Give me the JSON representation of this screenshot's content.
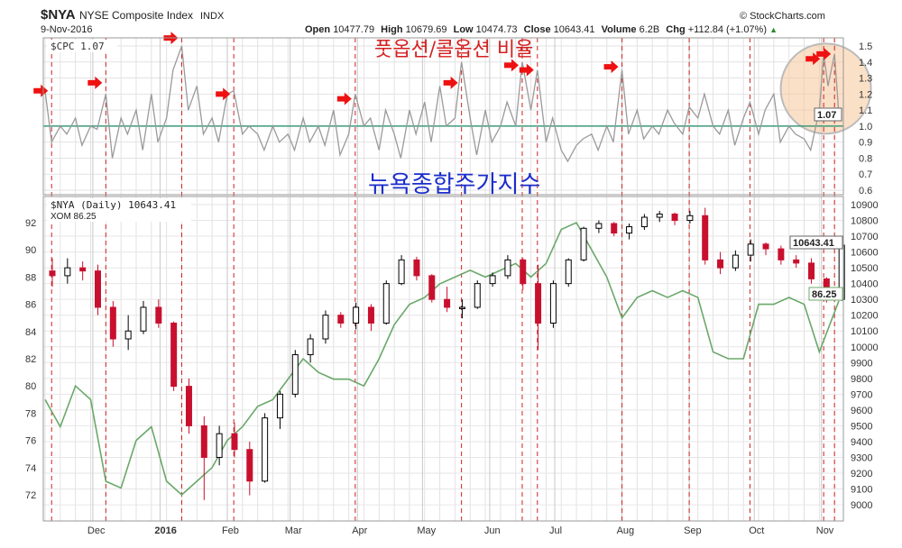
{
  "header": {
    "symbol": "$NYA",
    "name": "NYSE Composite Index",
    "exchange": "INDX",
    "date": "9-Nov-2016",
    "open_label": "Open",
    "open": "10477.79",
    "high_label": "High",
    "high": "10679.69",
    "low_label": "Low",
    "low": "10474.73",
    "close_label": "Close",
    "close": "10643.41",
    "volume_label": "Volume",
    "volume": "6.2B",
    "chg_label": "Chg",
    "chg": "+112.84 (+1.07%)",
    "chg_arrow": "▲",
    "copyright": "© StockCharts.com"
  },
  "annotations": {
    "top_title": "풋옵션/콜옵션 비율",
    "main_title": "뉴욕종합주가지수"
  },
  "colors": {
    "up_candle": "#000000",
    "down_candle": "#c8102e",
    "cpc_line": "#9a9a9a",
    "xom_line": "#6aa86a",
    "baseline": "#3f9a7a",
    "marker_line": "#d02020",
    "arrow": "#ee1111",
    "highlight": "#f7c79a",
    "korean_red": "#d42020",
    "korean_blue": "#1a2ccc"
  },
  "chart_data": [
    {
      "type": "line",
      "panel": "top",
      "legend": "$CPC 1.07",
      "last_value": "1.07",
      "ylim": [
        0.6,
        1.5
      ],
      "yticks": [
        "1.5",
        "1.4",
        "1.3",
        "1.2",
        "1.1",
        "1.0",
        "0.9",
        "0.8",
        "0.7",
        "0.6"
      ],
      "reference_line": 1.0,
      "grid": true,
      "points": [
        [
          "2015-11-09",
          1.22
        ],
        [
          "2015-11-12",
          0.9
        ],
        [
          "2015-11-16",
          1.0
        ],
        [
          "2015-11-19",
          0.95
        ],
        [
          "2015-11-23",
          1.05
        ],
        [
          "2015-11-26",
          0.88
        ],
        [
          "2015-11-30",
          1.0
        ],
        [
          "2015-12-03",
          0.98
        ],
        [
          "2015-12-07",
          1.2
        ],
        [
          "2015-12-10",
          0.8
        ],
        [
          "2015-12-14",
          1.05
        ],
        [
          "2015-12-17",
          0.95
        ],
        [
          "2015-12-21",
          1.1
        ],
        [
          "2015-12-24",
          0.85
        ],
        [
          "2015-12-28",
          1.2
        ],
        [
          "2015-12-31",
          0.9
        ],
        [
          "2016-01-04",
          1.05
        ],
        [
          "2016-01-07",
          1.35
        ],
        [
          "2016-01-11",
          1.5
        ],
        [
          "2016-01-14",
          1.1
        ],
        [
          "2016-01-18",
          1.25
        ],
        [
          "2016-01-21",
          0.95
        ],
        [
          "2016-01-25",
          1.05
        ],
        [
          "2016-01-28",
          0.9
        ],
        [
          "2016-02-01",
          1.2
        ],
        [
          "2016-02-04",
          1.22
        ],
        [
          "2016-02-08",
          0.95
        ],
        [
          "2016-02-11",
          1.0
        ],
        [
          "2016-02-15",
          0.95
        ],
        [
          "2016-02-18",
          0.85
        ],
        [
          "2016-02-22",
          1.0
        ],
        [
          "2016-02-25",
          0.9
        ],
        [
          "2016-02-29",
          0.95
        ],
        [
          "2016-03-03",
          0.85
        ],
        [
          "2016-03-07",
          1.05
        ],
        [
          "2016-03-10",
          0.9
        ],
        [
          "2016-03-14",
          1.0
        ],
        [
          "2016-03-17",
          0.88
        ],
        [
          "2016-03-21",
          1.1
        ],
        [
          "2016-03-24",
          0.82
        ],
        [
          "2016-03-28",
          0.95
        ],
        [
          "2016-03-31",
          1.2
        ],
        [
          "2016-04-04",
          1.0
        ],
        [
          "2016-04-07",
          1.05
        ],
        [
          "2016-04-11",
          0.85
        ],
        [
          "2016-04-14",
          1.1
        ],
        [
          "2016-04-18",
          0.95
        ],
        [
          "2016-04-21",
          0.8
        ],
        [
          "2016-04-25",
          1.1
        ],
        [
          "2016-04-28",
          0.95
        ],
        [
          "2016-05-02",
          1.15
        ],
        [
          "2016-05-05",
          0.9
        ],
        [
          "2016-05-09",
          1.25
        ],
        [
          "2016-05-12",
          1.0
        ],
        [
          "2016-05-16",
          1.05
        ],
        [
          "2016-05-19",
          1.4
        ],
        [
          "2016-05-23",
          1.05
        ],
        [
          "2016-05-26",
          0.82
        ],
        [
          "2016-05-30",
          1.1
        ],
        [
          "2016-06-02",
          0.9
        ],
        [
          "2016-06-06",
          1.0
        ],
        [
          "2016-06-09",
          1.15
        ],
        [
          "2016-06-13",
          1.0
        ],
        [
          "2016-06-16",
          1.4
        ],
        [
          "2016-06-20",
          1.1
        ],
        [
          "2016-06-23",
          1.35
        ],
        [
          "2016-06-27",
          0.9
        ],
        [
          "2016-06-30",
          1.05
        ],
        [
          "2016-07-04",
          0.85
        ],
        [
          "2016-07-07",
          0.78
        ],
        [
          "2016-07-11",
          0.88
        ],
        [
          "2016-07-14",
          0.92
        ],
        [
          "2016-07-18",
          0.95
        ],
        [
          "2016-07-21",
          0.85
        ],
        [
          "2016-07-25",
          1.0
        ],
        [
          "2016-07-28",
          0.9
        ],
        [
          "2016-08-01",
          1.35
        ],
        [
          "2016-08-04",
          0.95
        ],
        [
          "2016-08-08",
          1.1
        ],
        [
          "2016-08-11",
          0.92
        ],
        [
          "2016-08-15",
          1.0
        ],
        [
          "2016-08-18",
          0.95
        ],
        [
          "2016-08-22",
          1.1
        ],
        [
          "2016-08-25",
          1.02
        ],
        [
          "2016-08-29",
          0.95
        ],
        [
          "2016-09-01",
          1.12
        ],
        [
          "2016-09-05",
          1.05
        ],
        [
          "2016-09-08",
          1.2
        ],
        [
          "2016-09-12",
          1.0
        ],
        [
          "2016-09-15",
          0.95
        ],
        [
          "2016-09-19",
          1.1
        ],
        [
          "2016-09-22",
          0.88
        ],
        [
          "2016-09-26",
          1.05
        ],
        [
          "2016-09-29",
          1.15
        ],
        [
          "2016-10-03",
          0.95
        ],
        [
          "2016-10-06",
          1.1
        ],
        [
          "2016-10-10",
          1.2
        ],
        [
          "2016-10-13",
          0.9
        ],
        [
          "2016-10-17",
          1.0
        ],
        [
          "2016-10-20",
          0.95
        ],
        [
          "2016-10-24",
          0.92
        ],
        [
          "2016-10-27",
          0.85
        ],
        [
          "2016-10-31",
          1.1
        ],
        [
          "2016-11-02",
          1.45
        ],
        [
          "2016-11-04",
          1.25
        ],
        [
          "2016-11-07",
          1.45
        ],
        [
          "2016-11-09",
          1.07
        ]
      ]
    },
    {
      "type": "candlestick",
      "panel": "main",
      "legend": "$NYA (Daily) 10643.41",
      "last_value": "10643.41",
      "axis": "right",
      "ylim": [
        8950,
        10950
      ],
      "yticks": [
        "10900",
        "10800",
        "10700",
        "10600",
        "10500",
        "10400",
        "10300",
        "10200",
        "10100",
        "10000",
        "9900",
        "9800",
        "9700",
        "9600",
        "9500",
        "9400",
        "9300",
        "9200",
        "9100",
        "9000"
      ],
      "grid": true,
      "ohlc": [
        [
          "2015-11-09",
          10480,
          10560,
          10380,
          10450
        ],
        [
          "2015-11-16",
          10450,
          10560,
          10400,
          10500
        ],
        [
          "2015-11-23",
          10500,
          10540,
          10420,
          10480
        ],
        [
          "2015-11-30",
          10480,
          10520,
          10200,
          10250
        ],
        [
          "2015-12-07",
          10250,
          10290,
          10000,
          10050
        ],
        [
          "2015-12-14",
          10050,
          10200,
          9980,
          10100
        ],
        [
          "2015-12-21",
          10100,
          10290,
          10080,
          10250
        ],
        [
          "2015-12-28",
          10250,
          10300,
          10120,
          10150
        ],
        [
          "2016-01-04",
          10150,
          10160,
          9720,
          9750
        ],
        [
          "2016-01-11",
          9750,
          9800,
          9450,
          9500
        ],
        [
          "2016-01-18",
          9500,
          9560,
          9030,
          9300
        ],
        [
          "2016-01-25",
          9300,
          9500,
          9250,
          9450
        ],
        [
          "2016-02-01",
          9450,
          9520,
          9300,
          9350
        ],
        [
          "2016-02-08",
          9350,
          9400,
          9060,
          9150
        ],
        [
          "2016-02-15",
          9150,
          9580,
          9140,
          9550
        ],
        [
          "2016-02-22",
          9550,
          9720,
          9480,
          9700
        ],
        [
          "2016-02-29",
          9700,
          9980,
          9680,
          9950
        ],
        [
          "2016-03-07",
          9950,
          10080,
          9900,
          10050
        ],
        [
          "2016-03-14",
          10050,
          10230,
          10020,
          10200
        ],
        [
          "2016-03-21",
          10200,
          10220,
          10120,
          10150
        ],
        [
          "2016-03-28",
          10150,
          10280,
          10110,
          10250
        ],
        [
          "2016-04-04",
          10250,
          10270,
          10100,
          10150
        ],
        [
          "2016-04-11",
          10150,
          10420,
          10140,
          10400
        ],
        [
          "2016-04-18",
          10400,
          10580,
          10390,
          10550
        ],
        [
          "2016-04-25",
          10550,
          10570,
          10420,
          10450
        ],
        [
          "2016-05-02",
          10450,
          10460,
          10280,
          10300
        ],
        [
          "2016-05-09",
          10300,
          10380,
          10220,
          10250
        ],
        [
          "2016-05-16",
          10250,
          10300,
          10180,
          10250
        ],
        [
          "2016-05-23",
          10250,
          10420,
          10240,
          10400
        ],
        [
          "2016-05-30",
          10400,
          10470,
          10380,
          10450
        ],
        [
          "2016-06-06",
          10450,
          10580,
          10430,
          10550
        ],
        [
          "2016-06-13",
          10550,
          10560,
          10360,
          10400
        ],
        [
          "2016-06-20",
          10400,
          10520,
          9980,
          10150
        ],
        [
          "2016-06-27",
          10150,
          10420,
          10120,
          10400
        ],
        [
          "2016-07-04",
          10400,
          10560,
          10380,
          10550
        ],
        [
          "2016-07-11",
          10550,
          10760,
          10540,
          10750
        ],
        [
          "2016-07-18",
          10750,
          10800,
          10720,
          10780
        ],
        [
          "2016-07-25",
          10780,
          10790,
          10700,
          10720
        ],
        [
          "2016-08-01",
          10720,
          10780,
          10680,
          10760
        ],
        [
          "2016-08-08",
          10760,
          10840,
          10740,
          10820
        ],
        [
          "2016-08-15",
          10820,
          10860,
          10790,
          10840
        ],
        [
          "2016-08-22",
          10840,
          10850,
          10770,
          10800
        ],
        [
          "2016-08-29",
          10800,
          10860,
          10780,
          10830
        ],
        [
          "2016-09-05",
          10830,
          10880,
          10520,
          10550
        ],
        [
          "2016-09-12",
          10550,
          10600,
          10460,
          10500
        ],
        [
          "2016-09-19",
          10500,
          10610,
          10480,
          10580
        ],
        [
          "2016-09-26",
          10580,
          10680,
          10540,
          10650
        ],
        [
          "2016-10-03",
          10650,
          10660,
          10580,
          10620
        ],
        [
          "2016-10-10",
          10620,
          10640,
          10520,
          10550
        ],
        [
          "2016-10-17",
          10550,
          10580,
          10500,
          10530
        ],
        [
          "2016-10-24",
          10530,
          10560,
          10400,
          10430
        ],
        [
          "2016-10-31",
          10430,
          10440,
          10280,
          10300
        ],
        [
          "2016-11-07",
          10300,
          10679.69,
          10290,
          10643.41
        ]
      ]
    },
    {
      "type": "line",
      "panel": "main",
      "legend": "XOM 86.25",
      "last_value": "86.25",
      "axis": "left",
      "ylim": [
        70.5,
        93.3
      ],
      "yticks": [
        "92",
        "90",
        "88",
        "86",
        "84",
        "82",
        "80",
        "78",
        "76",
        "74",
        "72"
      ],
      "dates": [
        "2015-11-09",
        "2015-11-16",
        "2015-11-23",
        "2015-11-30",
        "2015-12-07",
        "2015-12-14",
        "2015-12-21",
        "2015-12-28",
        "2016-01-04",
        "2016-01-11",
        "2016-01-18",
        "2016-01-25",
        "2016-02-01",
        "2016-02-08",
        "2016-02-15",
        "2016-02-22",
        "2016-02-29",
        "2016-03-07",
        "2016-03-14",
        "2016-03-21",
        "2016-03-28",
        "2016-04-04",
        "2016-04-11",
        "2016-04-18",
        "2016-04-25",
        "2016-05-02",
        "2016-05-09",
        "2016-05-16",
        "2016-05-23",
        "2016-05-30",
        "2016-06-06",
        "2016-06-13",
        "2016-06-20",
        "2016-06-27",
        "2016-07-04",
        "2016-07-11",
        "2016-07-18",
        "2016-07-25",
        "2016-08-01",
        "2016-08-08",
        "2016-08-15",
        "2016-08-22",
        "2016-08-29",
        "2016-09-05",
        "2016-09-12",
        "2016-09-19",
        "2016-09-26",
        "2016-10-03",
        "2016-10-10",
        "2016-10-17",
        "2016-10-24",
        "2016-10-31",
        "2016-11-09"
      ],
      "values": [
        79,
        77,
        80,
        79,
        73,
        72.5,
        76,
        77,
        73,
        72,
        73,
        74,
        76,
        77,
        78.5,
        79,
        80.5,
        82,
        81,
        80.5,
        80.5,
        80,
        82,
        84.5,
        86,
        86.5,
        87.5,
        88,
        88.5,
        88,
        88.5,
        89,
        88,
        89,
        91.5,
        92,
        90,
        88,
        85,
        86.5,
        87,
        86.5,
        87,
        86.5,
        82.5,
        82,
        82,
        86,
        86,
        86.5,
        86,
        82.5,
        86.25
      ]
    }
  ],
  "x_axis": {
    "range": [
      "2015-11-09",
      "2016-11-09"
    ],
    "labels": [
      {
        "date": "2015-12-01",
        "text": "Dec"
      },
      {
        "date": "2016-01-01",
        "text": "2016"
      },
      {
        "date": "2016-02-01",
        "text": "Feb"
      },
      {
        "date": "2016-03-01",
        "text": "Mar"
      },
      {
        "date": "2016-04-01",
        "text": "Apr"
      },
      {
        "date": "2016-05-01",
        "text": "May"
      },
      {
        "date": "2016-06-01",
        "text": "Jun"
      },
      {
        "date": "2016-07-01",
        "text": "Jul"
      },
      {
        "date": "2016-08-01",
        "text": "Aug"
      },
      {
        "date": "2016-09-01",
        "text": "Sep"
      },
      {
        "date": "2016-10-01",
        "text": "Oct"
      },
      {
        "date": "2016-11-01",
        "text": "Nov"
      }
    ]
  },
  "marker_lines": [
    "2015-11-12",
    "2015-12-07",
    "2016-01-11",
    "2016-02-04",
    "2016-03-31",
    "2016-05-19",
    "2016-06-16",
    "2016-06-23",
    "2016-08-01",
    "2016-09-01",
    "2016-09-29",
    "2016-11-02",
    "2016-11-07"
  ],
  "arrows": [
    [
      "2015-11-12",
      1.22
    ],
    [
      "2015-12-07",
      1.27
    ],
    [
      "2016-01-11",
      1.55
    ],
    [
      "2016-02-04",
      1.2
    ],
    [
      "2016-03-31",
      1.17
    ],
    [
      "2016-05-19",
      1.27
    ],
    [
      "2016-06-16",
      1.38
    ],
    [
      "2016-06-23",
      1.35
    ],
    [
      "2016-08-01",
      1.37
    ],
    [
      "2016-11-02",
      1.42
    ],
    [
      "2016-11-07",
      1.45
    ]
  ],
  "highlight_center": [
    "2016-11-03",
    1.2
  ]
}
